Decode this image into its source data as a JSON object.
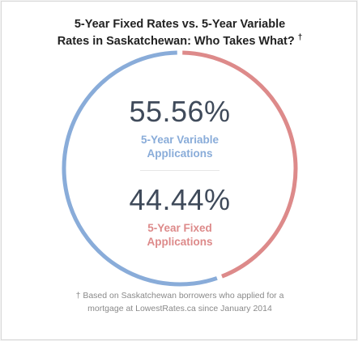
{
  "title": {
    "line1": "5-Year Fixed Rates vs. 5-Year Variable",
    "line2": "Rates in Saskatchewan: Who Takes What?",
    "dagger": "†"
  },
  "colors": {
    "variable": "#89acd9",
    "fixed": "#dd8a8a",
    "number": "#3f4a5a",
    "title": "#222222",
    "footnote": "#8a8a8a"
  },
  "chart_data": {
    "type": "pie",
    "style": "donut-ring",
    "title": "5-Year Fixed Rates vs. 5-Year Variable Rates in Saskatchewan: Who Takes What? †",
    "slices": [
      {
        "name": "5-Year Variable Applications",
        "value": 55.56,
        "value_label": "55.56%",
        "label_lines": "5-Year Variable\nApplications",
        "color": "#89acd9"
      },
      {
        "name": "5-Year Fixed Applications",
        "value": 44.44,
        "value_label": "44.44%",
        "label_lines": "5-Year Fixed\nApplications",
        "color": "#dd8a8a"
      }
    ]
  },
  "footnote": {
    "dagger": "†",
    "text": "Based on Saskatchewan borrowers who applied for a\nmortgage at LowestRates.ca since January 2014"
  }
}
